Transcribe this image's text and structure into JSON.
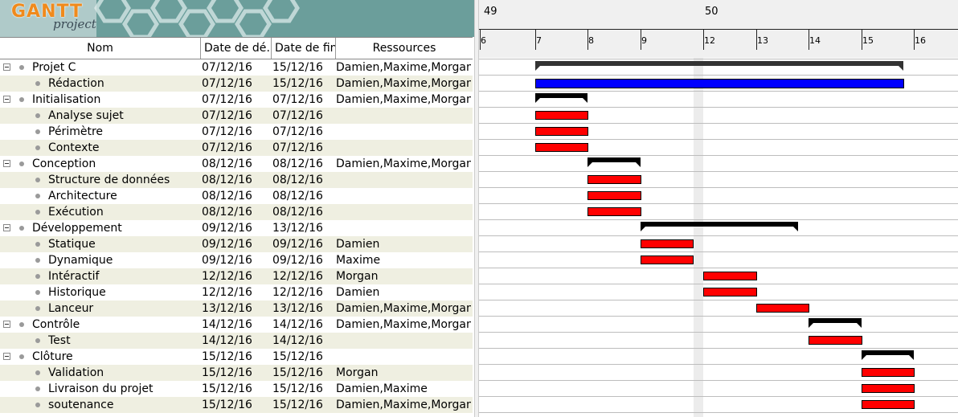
{
  "app": {
    "logo_main": "GANTT",
    "logo_sub": "project"
  },
  "columns": {
    "name": "Nom",
    "start": "Date de dé…",
    "end": "Date de fin",
    "resources": "Ressources"
  },
  "colors": {
    "task": "#ff0000",
    "summary": "#000000",
    "root_summary": "#333333",
    "blue_task": "#0000ff",
    "alt_row": "#efefe1"
  },
  "timeline": {
    "weeks": [
      {
        "label": "49"
      },
      {
        "label": "50"
      }
    ],
    "days": [
      "6",
      "7",
      "8",
      "9",
      "12",
      "13",
      "14",
      "15",
      "16"
    ]
  },
  "tasks": [
    {
      "name": "Projet C",
      "start": "07/12/16",
      "end": "15/12/16",
      "resources": "Damien,Maxime,Morgan",
      "level": 0,
      "group": true,
      "kind": "root",
      "from": 1,
      "to": 8
    },
    {
      "name": "Rédaction",
      "start": "07/12/16",
      "end": "15/12/16",
      "resources": "Damien,Maxime,Morgan",
      "level": 1,
      "group": false,
      "kind": "blue",
      "from": 1,
      "to": 8
    },
    {
      "name": "Initialisation",
      "start": "07/12/16",
      "end": "07/12/16",
      "resources": "Damien,Maxime,Morgan",
      "level": 0,
      "group": true,
      "kind": "summary",
      "from": 1,
      "to": 2
    },
    {
      "name": "Analyse sujet",
      "start": "07/12/16",
      "end": "07/12/16",
      "resources": "",
      "level": 1,
      "group": false,
      "kind": "task",
      "from": 1,
      "to": 2
    },
    {
      "name": "Périmètre",
      "start": "07/12/16",
      "end": "07/12/16",
      "resources": "",
      "level": 1,
      "group": false,
      "kind": "task",
      "from": 1,
      "to": 2
    },
    {
      "name": "Contexte",
      "start": "07/12/16",
      "end": "07/12/16",
      "resources": "",
      "level": 1,
      "group": false,
      "kind": "task",
      "from": 1,
      "to": 2
    },
    {
      "name": "Conception",
      "start": "08/12/16",
      "end": "08/12/16",
      "resources": "Damien,Maxime,Morgan",
      "level": 0,
      "group": true,
      "kind": "summary",
      "from": 2,
      "to": 3
    },
    {
      "name": "Structure de données",
      "start": "08/12/16",
      "end": "08/12/16",
      "resources": "",
      "level": 1,
      "group": false,
      "kind": "task",
      "from": 2,
      "to": 3
    },
    {
      "name": "Architecture",
      "start": "08/12/16",
      "end": "08/12/16",
      "resources": "",
      "level": 1,
      "group": false,
      "kind": "task",
      "from": 2,
      "to": 3
    },
    {
      "name": "Exécution",
      "start": "08/12/16",
      "end": "08/12/16",
      "resources": "",
      "level": 1,
      "group": false,
      "kind": "task",
      "from": 2,
      "to": 3
    },
    {
      "name": "Développement",
      "start": "09/12/16",
      "end": "13/12/16",
      "resources": "",
      "level": 0,
      "group": true,
      "kind": "summary",
      "from": 3,
      "to": 6
    },
    {
      "name": "Statique",
      "start": "09/12/16",
      "end": "09/12/16",
      "resources": "Damien",
      "level": 1,
      "group": false,
      "kind": "task",
      "from": 3,
      "to": 4
    },
    {
      "name": "Dynamique",
      "start": "09/12/16",
      "end": "09/12/16",
      "resources": "Maxime",
      "level": 1,
      "group": false,
      "kind": "task",
      "from": 3,
      "to": 4
    },
    {
      "name": "Intéractif",
      "start": "12/12/16",
      "end": "12/12/16",
      "resources": "Morgan",
      "level": 1,
      "group": false,
      "kind": "task",
      "from": 4.2,
      "to": 5.2
    },
    {
      "name": "Historique",
      "start": "12/12/16",
      "end": "12/12/16",
      "resources": "Damien",
      "level": 1,
      "group": false,
      "kind": "task",
      "from": 4.2,
      "to": 5.2
    },
    {
      "name": "Lanceur",
      "start": "13/12/16",
      "end": "13/12/16",
      "resources": "Damien,Maxime,Morgan",
      "level": 1,
      "group": false,
      "kind": "task",
      "from": 5.2,
      "to": 6.2
    },
    {
      "name": "Contrôle",
      "start": "14/12/16",
      "end": "14/12/16",
      "resources": "Damien,Maxime,Morgan",
      "level": 0,
      "group": true,
      "kind": "summary",
      "from": 6.2,
      "to": 7.2
    },
    {
      "name": "Test",
      "start": "14/12/16",
      "end": "14/12/16",
      "resources": "",
      "level": 1,
      "group": false,
      "kind": "task",
      "from": 6.2,
      "to": 7.2
    },
    {
      "name": "Clôture",
      "start": "15/12/16",
      "end": "15/12/16",
      "resources": "",
      "level": 0,
      "group": true,
      "kind": "summary",
      "from": 7.2,
      "to": 8.2
    },
    {
      "name": "Validation",
      "start": "15/12/16",
      "end": "15/12/16",
      "resources": "Morgan",
      "level": 1,
      "group": false,
      "kind": "task",
      "from": 7.2,
      "to": 8.2
    },
    {
      "name": "Livraison du projet",
      "start": "15/12/16",
      "end": "15/12/16",
      "resources": "Damien,Maxime",
      "level": 1,
      "group": false,
      "kind": "task",
      "from": 7.2,
      "to": 8.2
    },
    {
      "name": "soutenance",
      "start": "15/12/16",
      "end": "15/12/16",
      "resources": "Damien,Maxime,Morgan",
      "level": 1,
      "group": false,
      "kind": "task",
      "from": 7.2,
      "to": 8.2
    }
  ]
}
